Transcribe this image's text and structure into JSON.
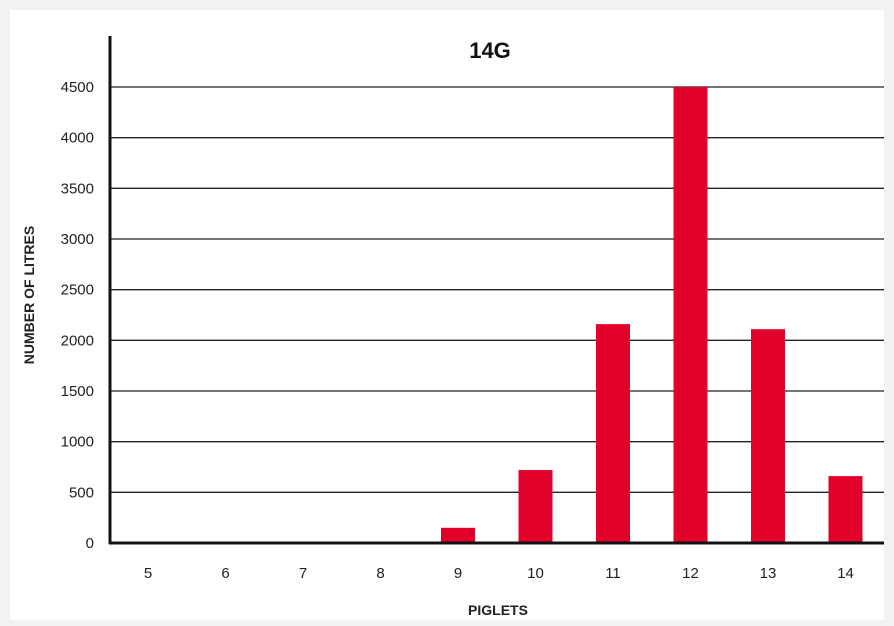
{
  "chart_data": {
    "type": "bar",
    "title": "14G",
    "xlabel": "PIGLETS",
    "ylabel": "NUMBER OF LITRES",
    "categories": [
      "5",
      "6",
      "7",
      "8",
      "9",
      "10",
      "11",
      "12",
      "13",
      "14"
    ],
    "values": [
      0,
      0,
      0,
      0,
      150,
      720,
      2160,
      4500,
      2110,
      660
    ],
    "y_tick_labels": [
      "0",
      "500",
      "1000",
      "1500",
      "2000",
      "2500",
      "3000",
      "3500",
      "4000",
      "4500"
    ],
    "grid": true,
    "legend": "none",
    "bar_color": "#e0002a"
  }
}
